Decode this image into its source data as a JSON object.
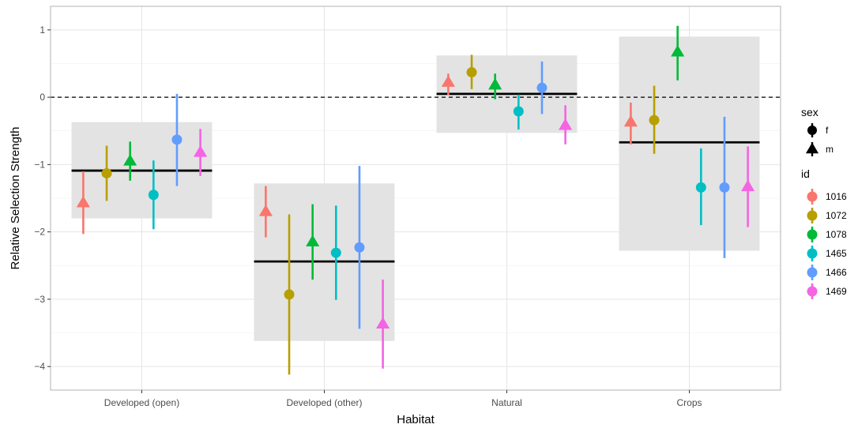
{
  "chart_data": {
    "type": "scatter",
    "xlabel": "Habitat",
    "ylabel": "Relative Selection Strength",
    "categories": [
      "Developed (open)",
      "Developed (other)",
      "Natural",
      "Crops"
    ],
    "ylim": [
      -4.35,
      1.35
    ],
    "yticks": [
      1,
      0,
      -1,
      -2,
      -3,
      -4
    ],
    "ytick_labels": [
      "1",
      "0",
      "−1",
      "−2",
      "−3",
      "−4"
    ],
    "grid": true,
    "reference_line": {
      "y": 0,
      "style": "dashed"
    },
    "legend_position": "right",
    "legends": {
      "shape": {
        "title": "sex",
        "entries": [
          {
            "label": "f",
            "shape": "circle"
          },
          {
            "label": "m",
            "shape": "triangle"
          }
        ]
      },
      "color": {
        "title": "id",
        "entries": [
          {
            "label": "1016",
            "color": "#F8766D"
          },
          {
            "label": "1072",
            "color": "#B79F00"
          },
          {
            "label": "1078",
            "color": "#00BA38"
          },
          {
            "label": "1465",
            "color": "#00BFC4"
          },
          {
            "label": "1466",
            "color": "#619CFF"
          },
          {
            "label": "1469",
            "color": "#F564E3"
          }
        ]
      }
    },
    "group_summaries": [
      {
        "category": "Developed (open)",
        "mean": -1.09,
        "low": -1.8,
        "high": -0.37
      },
      {
        "category": "Developed (other)",
        "mean": -2.44,
        "low": -3.62,
        "high": -1.28
      },
      {
        "category": "Natural",
        "mean": 0.05,
        "low": -0.53,
        "high": 0.62
      },
      {
        "category": "Crops",
        "mean": -0.67,
        "low": -2.28,
        "high": 0.9
      }
    ],
    "series": [
      {
        "name": "1016",
        "sex": "m",
        "color": "#F8766D",
        "values": [
          -1.57,
          -1.7,
          0.22,
          -0.37
        ],
        "lower": [
          -2.03,
          -2.08,
          0.03,
          -0.7
        ],
        "upper": [
          -1.1,
          -1.32,
          0.35,
          -0.08
        ]
      },
      {
        "name": "1072",
        "sex": "f",
        "color": "#B79F00",
        "values": [
          -1.13,
          -2.93,
          0.37,
          -0.34
        ],
        "lower": [
          -1.54,
          -4.12,
          0.12,
          -0.84
        ],
        "upper": [
          -0.72,
          -1.74,
          0.63,
          0.17
        ]
      },
      {
        "name": "1078",
        "sex": "m",
        "color": "#00BA38",
        "values": [
          -0.95,
          -2.15,
          0.18,
          0.67
        ],
        "lower": [
          -1.24,
          -2.71,
          -0.03,
          0.25
        ],
        "upper": [
          -0.66,
          -1.59,
          0.35,
          1.06
        ]
      },
      {
        "name": "1465",
        "sex": "f",
        "color": "#00BFC4",
        "values": [
          -1.45,
          -2.31,
          -0.21,
          -1.34
        ],
        "lower": [
          -1.96,
          -3.01,
          -0.48,
          -1.9
        ],
        "upper": [
          -0.94,
          -1.61,
          0.04,
          -0.76
        ]
      },
      {
        "name": "1466",
        "sex": "f",
        "color": "#619CFF",
        "values": [
          -0.63,
          -2.23,
          0.14,
          -1.34
        ],
        "lower": [
          -1.32,
          -3.44,
          -0.25,
          -2.39
        ],
        "upper": [
          0.05,
          -1.02,
          0.53,
          -0.29
        ]
      },
      {
        "name": "1469",
        "sex": "m",
        "color": "#F564E3",
        "values": [
          -0.82,
          -3.37,
          -0.42,
          -1.33
        ],
        "lower": [
          -1.17,
          -4.03,
          -0.7,
          -1.93
        ],
        "upper": [
          -0.47,
          -2.71,
          -0.12,
          -0.73
        ]
      }
    ]
  }
}
